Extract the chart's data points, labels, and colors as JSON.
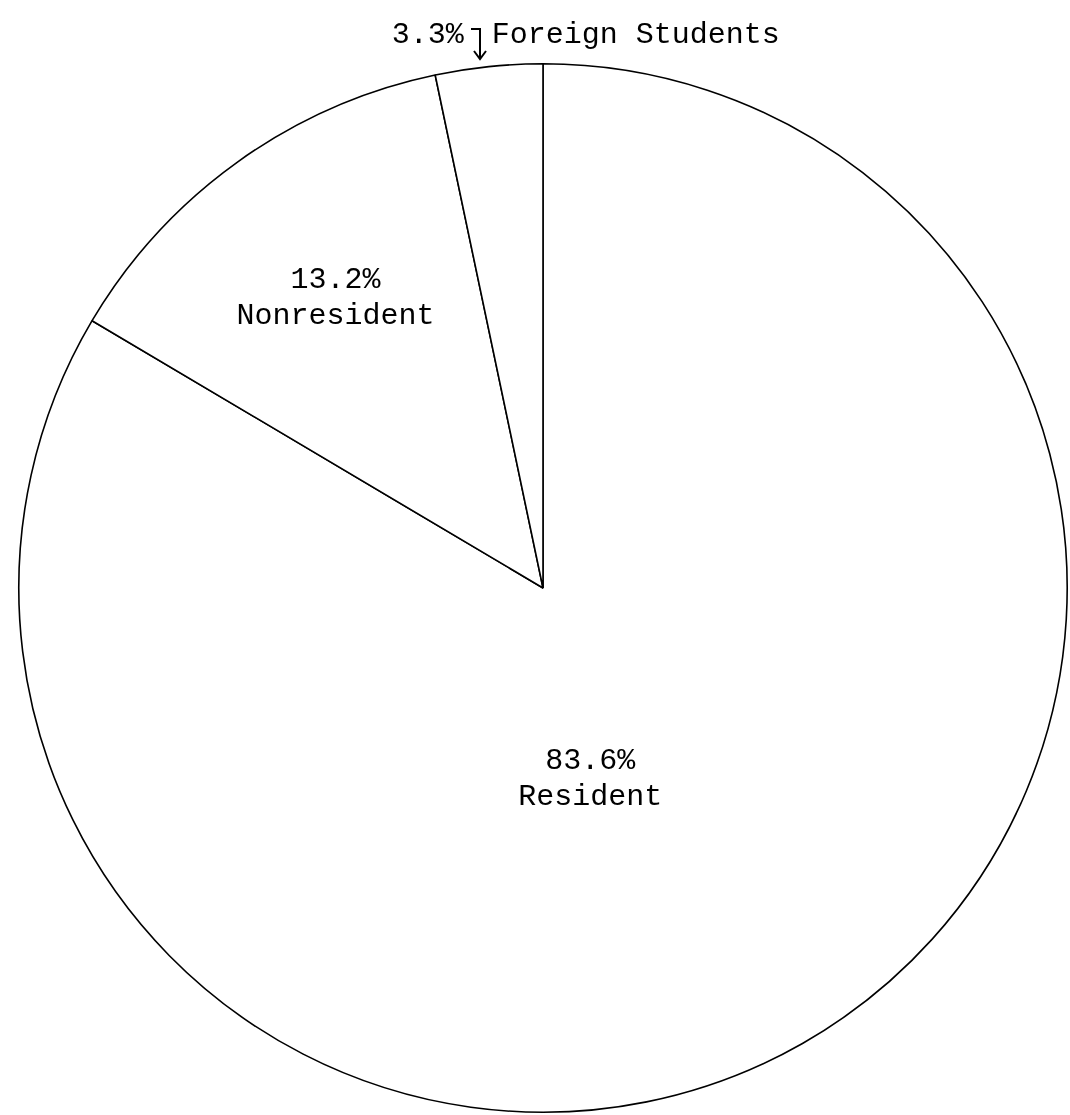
{
  "chart_data": {
    "type": "pie",
    "categories": [
      "Resident",
      "Nonresident",
      "Foreign Students"
    ],
    "values": [
      83.6,
      13.2,
      3.3
    ],
    "colors": [
      "#ffffff",
      "#ffffff",
      "#ffffff"
    ],
    "value_labels": [
      "83.6%",
      "13.2%",
      "3.3%"
    ]
  }
}
